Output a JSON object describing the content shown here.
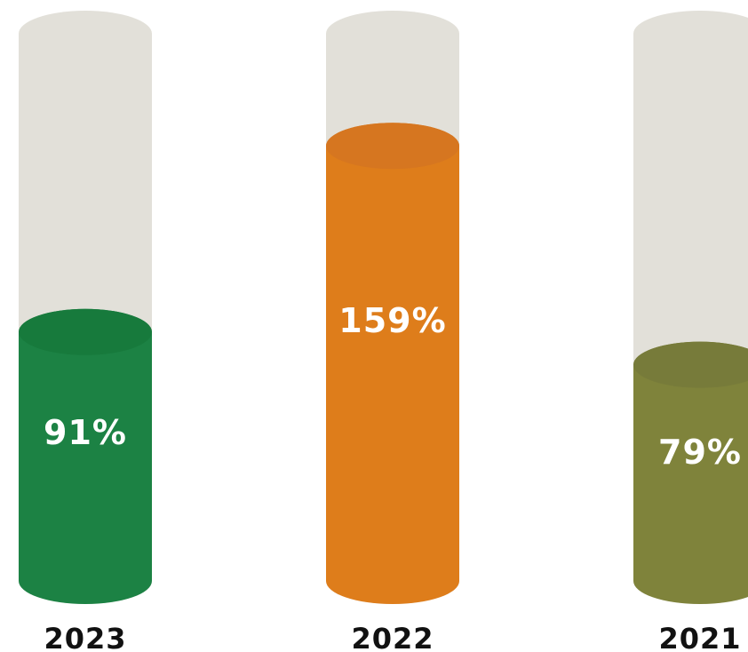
{
  "chart_data": {
    "type": "bar",
    "categories": [
      "2023",
      "2022",
      "2021"
    ],
    "values": [
      91,
      159,
      79
    ],
    "value_labels": [
      "91%",
      "159%",
      "79%"
    ],
    "ylim": [
      0,
      200
    ],
    "unit": "%",
    "colors": {
      "bars": [
        "#1c8244",
        "#de7d1b",
        "#7f833b"
      ],
      "bar_tops": [
        "#177a3c",
        "#d67620",
        "#777b3a"
      ],
      "track": "#e2e0d9",
      "track_top": "#e2e0d9",
      "year_text": "#111111",
      "value_text": "#ffffff"
    }
  }
}
